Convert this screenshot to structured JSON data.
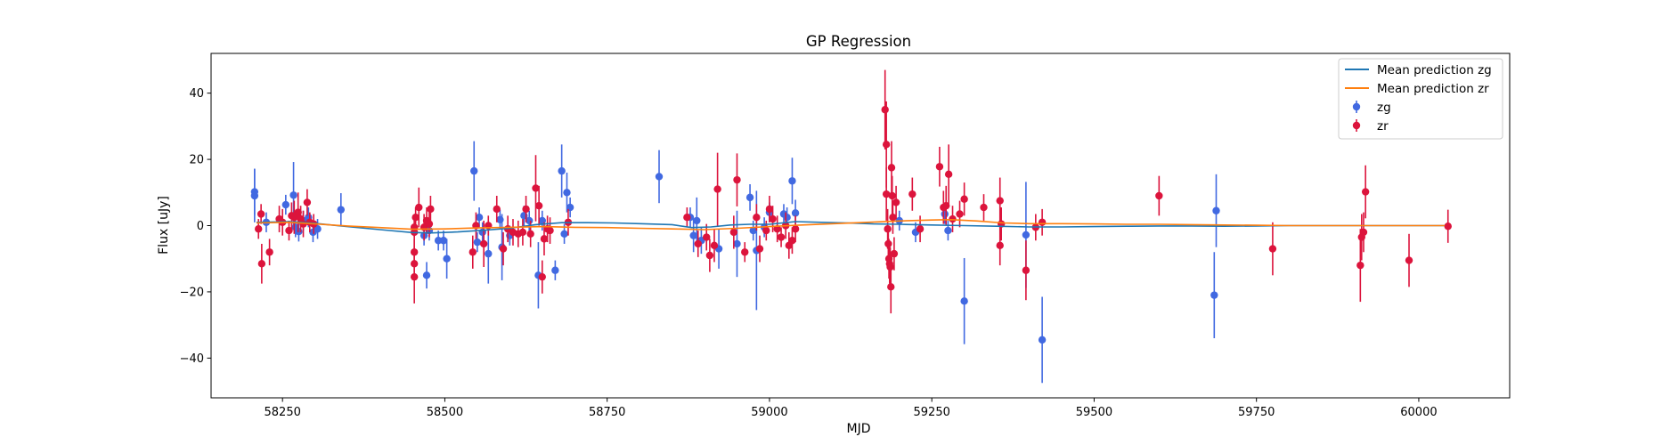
{
  "chart_data": {
    "type": "scatter",
    "title": "GP Regression",
    "xlabel": "MJD",
    "ylabel": "Flux [uJy]",
    "xlim": [
      58140,
      60140
    ],
    "ylim": [
      -52,
      52
    ],
    "xticks": [
      58250,
      58500,
      58750,
      59000,
      59250,
      59500,
      59750,
      60000
    ],
    "yticks": [
      -40,
      -20,
      0,
      20,
      40
    ],
    "legend_position": "top-right",
    "grid": false,
    "lines": [
      {
        "name": "Mean prediction zg",
        "color": "#1f77b4",
        "points": [
          [
            58210,
            1.0
          ],
          [
            58260,
            1.2
          ],
          [
            58300,
            0.7
          ],
          [
            58350,
            -0.3
          ],
          [
            58400,
            -1.2
          ],
          [
            58450,
            -2.1
          ],
          [
            58480,
            -2.2
          ],
          [
            58520,
            -1.9
          ],
          [
            58560,
            -1.4
          ],
          [
            58600,
            -0.8
          ],
          [
            58640,
            0.3
          ],
          [
            58680,
            0.9
          ],
          [
            58720,
            0.9
          ],
          [
            58760,
            0.8
          ],
          [
            58800,
            0.6
          ],
          [
            58850,
            0.3
          ],
          [
            58880,
            -0.6
          ],
          [
            58910,
            -0.4
          ],
          [
            58940,
            0.2
          ],
          [
            58970,
            0.4
          ],
          [
            59000,
            0.4
          ],
          [
            59040,
            1.2
          ],
          [
            59080,
            1.0
          ],
          [
            59120,
            0.8
          ],
          [
            59160,
            0.5
          ],
          [
            59200,
            0.4
          ],
          [
            59250,
            0.2
          ],
          [
            59300,
            0.0
          ],
          [
            59350,
            -0.2
          ],
          [
            59400,
            -0.4
          ],
          [
            59450,
            -0.4
          ],
          [
            59500,
            -0.3
          ],
          [
            59550,
            -0.2
          ],
          [
            59600,
            -0.1
          ],
          [
            59650,
            -0.1
          ],
          [
            59700,
            -0.2
          ],
          [
            59750,
            -0.1
          ],
          [
            59800,
            0.0
          ],
          [
            59850,
            0.0
          ],
          [
            59900,
            0.0
          ],
          [
            59950,
            0.0
          ],
          [
            60000,
            0.0
          ],
          [
            60040,
            0.0
          ]
        ]
      },
      {
        "name": "Mean prediction zr",
        "color": "#ff7f0e",
        "points": [
          [
            58210,
            0.8
          ],
          [
            58260,
            1.0
          ],
          [
            58300,
            0.5
          ],
          [
            58350,
            -0.1
          ],
          [
            58400,
            -0.6
          ],
          [
            58450,
            -1.1
          ],
          [
            58500,
            -1.0
          ],
          [
            58550,
            -0.7
          ],
          [
            58600,
            -0.5
          ],
          [
            58650,
            -0.3
          ],
          [
            58700,
            -0.5
          ],
          [
            58750,
            -0.6
          ],
          [
            58800,
            -0.8
          ],
          [
            58850,
            -1.0
          ],
          [
            58900,
            -1.2
          ],
          [
            58950,
            -0.8
          ],
          [
            59000,
            -0.3
          ],
          [
            59050,
            0.2
          ],
          [
            59100,
            0.6
          ],
          [
            59150,
            1.0
          ],
          [
            59200,
            1.4
          ],
          [
            59250,
            1.7
          ],
          [
            59280,
            1.8
          ],
          [
            59320,
            1.4
          ],
          [
            59360,
            0.8
          ],
          [
            59400,
            0.6
          ],
          [
            59450,
            0.6
          ],
          [
            59500,
            0.5
          ],
          [
            59550,
            0.4
          ],
          [
            59600,
            0.4
          ],
          [
            59650,
            0.3
          ],
          [
            59700,
            0.2
          ],
          [
            59750,
            0.1
          ],
          [
            59800,
            0.0
          ],
          [
            59850,
            0.0
          ],
          [
            59900,
            0.0
          ],
          [
            59950,
            0.0
          ],
          [
            60000,
            0.0
          ],
          [
            60040,
            0.0
          ]
        ]
      }
    ],
    "series": [
      {
        "name": "zg",
        "color": "#4169e1",
        "points": [
          [
            58207,
            10.2,
            7
          ],
          [
            58207,
            9.0,
            8
          ],
          [
            58225,
            1.0,
            3
          ],
          [
            58255,
            6.3,
            3
          ],
          [
            58267,
            9.2,
            10
          ],
          [
            58270,
            -0.5,
            3
          ],
          [
            58275,
            -1.8,
            3
          ],
          [
            58282,
            1.5,
            3
          ],
          [
            58290,
            2.5,
            3
          ],
          [
            58297,
            -2.0,
            3
          ],
          [
            58304,
            -1.0,
            3
          ],
          [
            58340,
            4.8,
            5
          ],
          [
            58468,
            -3.0,
            3
          ],
          [
            58472,
            -15.0,
            4
          ],
          [
            58476,
            -1.5,
            3
          ],
          [
            58490,
            -4.5,
            3
          ],
          [
            58498,
            -4.5,
            3
          ],
          [
            58503,
            -10.0,
            6
          ],
          [
            58545,
            16.5,
            9
          ],
          [
            58550,
            -5.0,
            3
          ],
          [
            58553,
            2.5,
            3
          ],
          [
            58558,
            -2.0,
            3
          ],
          [
            58567,
            -8.5,
            9
          ],
          [
            58585,
            1.8,
            3
          ],
          [
            58588,
            -6.5,
            10
          ],
          [
            58600,
            -3.0,
            3
          ],
          [
            58622,
            3.0,
            3
          ],
          [
            58630,
            1.5,
            3
          ],
          [
            58644,
            -15.0,
            10
          ],
          [
            58650,
            1.5,
            3
          ],
          [
            58670,
            -13.5,
            3
          ],
          [
            58680,
            16.5,
            8
          ],
          [
            58684,
            -2.5,
            3
          ],
          [
            58688,
            10.0,
            6
          ],
          [
            58693,
            5.5,
            3
          ],
          [
            58830,
            14.8,
            8
          ],
          [
            58878,
            2.5,
            3
          ],
          [
            58883,
            -3.0,
            5
          ],
          [
            58888,
            1.5,
            7
          ],
          [
            58895,
            -4.5,
            4
          ],
          [
            58922,
            -7.0,
            6
          ],
          [
            58950,
            -5.5,
            10
          ],
          [
            58970,
            8.5,
            4
          ],
          [
            58975,
            -1.5,
            3
          ],
          [
            58980,
            -7.5,
            18
          ],
          [
            58992,
            -0.5,
            3
          ],
          [
            59000,
            4.0,
            3
          ],
          [
            59022,
            3.5,
            3
          ],
          [
            59027,
            2.5,
            3
          ],
          [
            59035,
            13.5,
            7
          ],
          [
            59040,
            3.8,
            4
          ],
          [
            59200,
            1.5,
            3
          ],
          [
            59225,
            -2.0,
            3
          ],
          [
            59270,
            3.5,
            3
          ],
          [
            59275,
            -1.5,
            3
          ],
          [
            59300,
            -22.8,
            13
          ],
          [
            59395,
            -2.8,
            16
          ],
          [
            59420,
            -34.5,
            13
          ],
          [
            59685,
            -21.0,
            13
          ],
          [
            59688,
            4.5,
            11
          ]
        ]
      },
      {
        "name": "zr",
        "color": "#dc143c",
        "points": [
          [
            58213,
            -1.0,
            3
          ],
          [
            58217,
            3.5,
            3
          ],
          [
            58218,
            -11.5,
            6
          ],
          [
            58230,
            -8.0,
            4
          ],
          [
            58245,
            2.0,
            4
          ],
          [
            58250,
            1.0,
            4
          ],
          [
            58260,
            -1.5,
            3
          ],
          [
            58264,
            3.0,
            4
          ],
          [
            58268,
            2.5,
            5
          ],
          [
            58274,
            4.0,
            6
          ],
          [
            58278,
            2.0,
            4
          ],
          [
            58282,
            0.5,
            4
          ],
          [
            58288,
            7.0,
            4
          ],
          [
            58292,
            1.0,
            3
          ],
          [
            58298,
            0.5,
            3
          ],
          [
            58453,
            -15.5,
            8
          ],
          [
            58453,
            -11.5,
            5
          ],
          [
            58453,
            -8.0,
            4
          ],
          [
            58453,
            -2.0,
            5
          ],
          [
            58453,
            -0.5,
            3
          ],
          [
            58455,
            2.5,
            3
          ],
          [
            58460,
            5.5,
            6
          ],
          [
            58468,
            -0.5,
            4
          ],
          [
            58472,
            1.5,
            4
          ],
          [
            58476,
            0.5,
            4
          ],
          [
            58478,
            5.0,
            4
          ],
          [
            58543,
            -8.0,
            5
          ],
          [
            58548,
            0.0,
            4
          ],
          [
            58560,
            -5.5,
            7
          ],
          [
            58567,
            0.0,
            3
          ],
          [
            58580,
            5.0,
            4
          ],
          [
            58590,
            -7.0,
            5
          ],
          [
            58597,
            -1.0,
            4
          ],
          [
            58605,
            -2.0,
            4
          ],
          [
            58613,
            -2.5,
            4
          ],
          [
            58620,
            -2.0,
            4
          ],
          [
            58625,
            5.0,
            4
          ],
          [
            58632,
            -2.5,
            4
          ],
          [
            58640,
            11.3,
            10
          ],
          [
            58645,
            6.0,
            6
          ],
          [
            58650,
            -15.5,
            5
          ],
          [
            58653,
            -4.0,
            5
          ],
          [
            58658,
            -1.0,
            4
          ],
          [
            58662,
            -1.5,
            4
          ],
          [
            58690,
            1.0,
            4
          ],
          [
            58873,
            2.5,
            3
          ],
          [
            58890,
            -5.5,
            4
          ],
          [
            58903,
            -3.5,
            4
          ],
          [
            58908,
            -9.0,
            5
          ],
          [
            58915,
            -6.0,
            5
          ],
          [
            58920,
            11.0,
            11
          ],
          [
            58945,
            -2.0,
            5
          ],
          [
            58950,
            13.8,
            8
          ],
          [
            58962,
            -8.0,
            3
          ],
          [
            58980,
            2.5,
            4
          ],
          [
            58985,
            -7.0,
            4
          ],
          [
            58995,
            -1.5,
            3
          ],
          [
            59000,
            5.0,
            4
          ],
          [
            59005,
            2.0,
            4
          ],
          [
            59012,
            -1.0,
            4
          ],
          [
            59018,
            -3.5,
            3
          ],
          [
            59025,
            0.0,
            4
          ],
          [
            59030,
            -6.0,
            4
          ],
          [
            59035,
            -4.5,
            4
          ],
          [
            59040,
            -1.0,
            4
          ],
          [
            59178,
            35.0,
            12
          ],
          [
            59180,
            24.5,
            13
          ],
          [
            59180,
            9.5,
            8
          ],
          [
            59182,
            -1.0,
            6
          ],
          [
            59183,
            -5.5,
            5
          ],
          [
            59184,
            -10.0,
            6
          ],
          [
            59185,
            -11.5,
            6
          ],
          [
            59186,
            -12.5,
            6
          ],
          [
            59187,
            -18.5,
            8
          ],
          [
            59188,
            17.5,
            8
          ],
          [
            59189,
            9.0,
            6
          ],
          [
            59190,
            2.5,
            5
          ],
          [
            59192,
            -8.5,
            5
          ],
          [
            59195,
            7.0,
            5
          ],
          [
            59220,
            9.5,
            5
          ],
          [
            59232,
            -1.0,
            4
          ],
          [
            59262,
            17.8,
            6
          ],
          [
            59268,
            5.5,
            5
          ],
          [
            59272,
            6.0,
            6
          ],
          [
            59276,
            15.5,
            9
          ],
          [
            59282,
            2.0,
            4
          ],
          [
            59293,
            3.5,
            4
          ],
          [
            59300,
            8.0,
            5
          ],
          [
            59330,
            5.5,
            4
          ],
          [
            59355,
            -6.0,
            6
          ],
          [
            59355,
            7.5,
            7
          ],
          [
            59357,
            0.5,
            5
          ],
          [
            59395,
            -13.5,
            9
          ],
          [
            59410,
            -0.5,
            4
          ],
          [
            59420,
            1.0,
            4
          ],
          [
            59600,
            9.0,
            6
          ],
          [
            59775,
            -7.0,
            8
          ],
          [
            59910,
            -12.0,
            11
          ],
          [
            59912,
            -3.5,
            7
          ],
          [
            59915,
            -2.0,
            6
          ],
          [
            59918,
            10.2,
            8
          ],
          [
            59985,
            -10.5,
            8
          ],
          [
            60045,
            -0.2,
            5
          ]
        ]
      }
    ]
  }
}
